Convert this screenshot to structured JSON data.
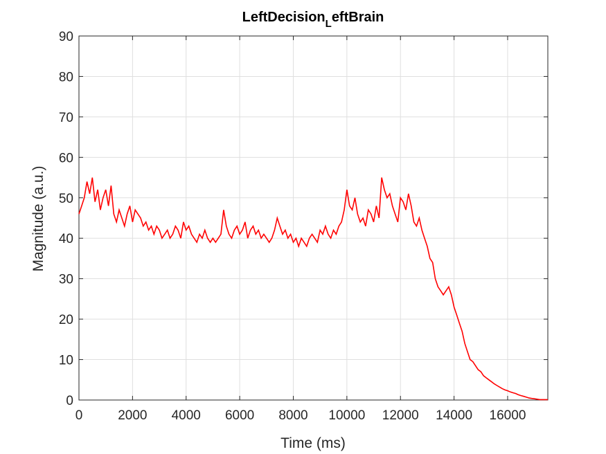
{
  "chart_data": {
    "type": "line",
    "title_main": "LeftDecision",
    "title_sub": "L",
    "title_rest": "eftBrain",
    "xlabel": "Time (ms)",
    "ylabel": "Magnitude (a.u.)",
    "xlim": [
      0,
      17500
    ],
    "ylim": [
      0,
      90
    ],
    "xticks": [
      0,
      2000,
      4000,
      6000,
      8000,
      10000,
      12000,
      14000,
      16000
    ],
    "yticks": [
      0,
      10,
      20,
      30,
      40,
      50,
      60,
      70,
      80,
      90
    ],
    "grid": true,
    "series": [
      {
        "color": "#ff0000",
        "x": [
          0,
          100,
          200,
          300,
          400,
          500,
          600,
          700,
          800,
          900,
          1000,
          1100,
          1200,
          1300,
          1400,
          1500,
          1600,
          1700,
          1800,
          1900,
          2000,
          2100,
          2200,
          2300,
          2400,
          2500,
          2600,
          2700,
          2800,
          2900,
          3000,
          3100,
          3200,
          3300,
          3400,
          3500,
          3600,
          3700,
          3800,
          3900,
          4000,
          4100,
          4200,
          4300,
          4400,
          4500,
          4600,
          4700,
          4800,
          4900,
          5000,
          5100,
          5200,
          5300,
          5400,
          5500,
          5600,
          5700,
          5800,
          5900,
          6000,
          6100,
          6200,
          6300,
          6400,
          6500,
          6600,
          6700,
          6800,
          6900,
          7000,
          7100,
          7200,
          7300,
          7400,
          7500,
          7600,
          7700,
          7800,
          7900,
          8000,
          8100,
          8200,
          8300,
          8400,
          8500,
          8600,
          8700,
          8800,
          8900,
          9000,
          9100,
          9200,
          9300,
          9400,
          9500,
          9600,
          9700,
          9800,
          9900,
          10000,
          10100,
          10200,
          10300,
          10400,
          10500,
          10600,
          10700,
          10800,
          10900,
          11000,
          11100,
          11200,
          11300,
          11400,
          11500,
          11600,
          11700,
          11800,
          11900,
          12000,
          12100,
          12200,
          12300,
          12400,
          12500,
          12600,
          12700,
          12800,
          12900,
          13000,
          13100,
          13200,
          13300,
          13400,
          13500,
          13600,
          13700,
          13800,
          13900,
          14000,
          14100,
          14200,
          14300,
          14400,
          14500,
          14600,
          14700,
          14800,
          14900,
          15000,
          15100,
          15200,
          15300,
          15400,
          15500,
          15600,
          15700,
          15800,
          15900,
          16000,
          16100,
          16200,
          16300,
          16400,
          16500,
          16600,
          16700,
          16800,
          16900,
          17000,
          17100,
          17200,
          17300,
          17400,
          17500
        ],
        "y": [
          46,
          48,
          50,
          54,
          51,
          55,
          49,
          52,
          47,
          50,
          52,
          48,
          53,
          46,
          44,
          47,
          45,
          43,
          46,
          48,
          44,
          47,
          46,
          45,
          43,
          44,
          42,
          43,
          41,
          43,
          42,
          40,
          41,
          42,
          40,
          41,
          43,
          42,
          40,
          44,
          42,
          43,
          41,
          40,
          39,
          41,
          40,
          42,
          40,
          39,
          40,
          39,
          40,
          41,
          47,
          43,
          41,
          40,
          42,
          43,
          41,
          42,
          44,
          40,
          42,
          43,
          41,
          42,
          40,
          41,
          40,
          39,
          40,
          42,
          45,
          43,
          41,
          42,
          40,
          41,
          39,
          40,
          38,
          40,
          39,
          38,
          40,
          41,
          40,
          39,
          42,
          41,
          43,
          41,
          40,
          42,
          41,
          43,
          44,
          47,
          52,
          48,
          47,
          50,
          46,
          44,
          45,
          43,
          47,
          46,
          44,
          48,
          45,
          55,
          52,
          50,
          51,
          48,
          46,
          44,
          50,
          49,
          47,
          51,
          48,
          44,
          43,
          45,
          42,
          40,
          38,
          35,
          34,
          30,
          28,
          27,
          26,
          27,
          28,
          26,
          23,
          21,
          19,
          17,
          14,
          12,
          10,
          9.5,
          8.5,
          7.5,
          7,
          6,
          5.5,
          5,
          4.5,
          4,
          3.6,
          3.2,
          2.8,
          2.5,
          2.3,
          2,
          1.8,
          1.6,
          1.3,
          1.1,
          0.9,
          0.7,
          0.5,
          0.4,
          0.3,
          0.2,
          0.1,
          0.1,
          0.1,
          0.1
        ]
      }
    ]
  }
}
